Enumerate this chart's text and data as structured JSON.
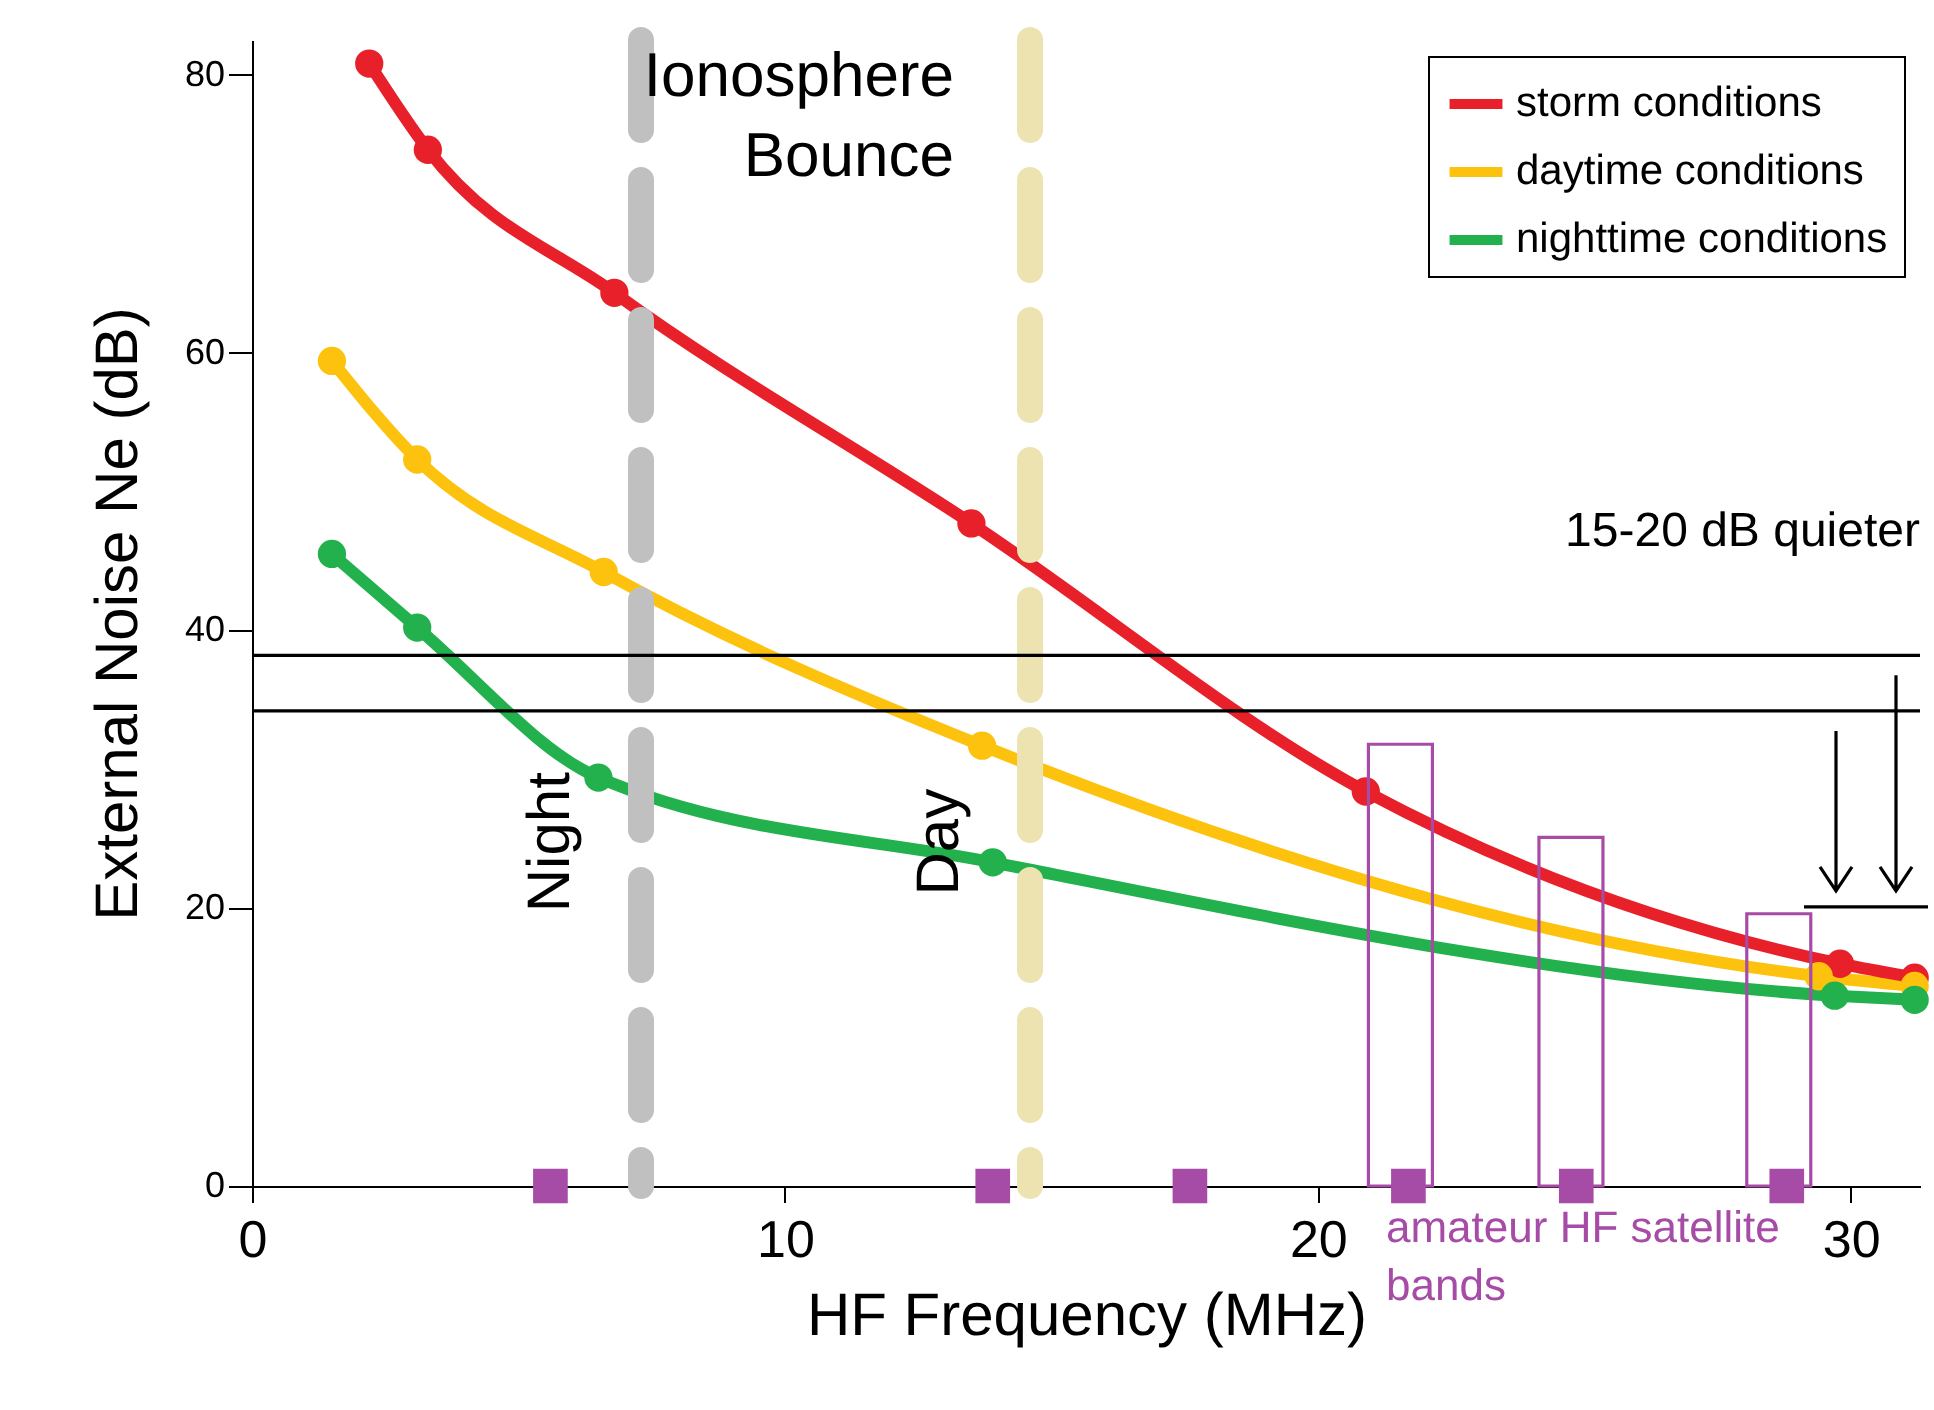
{
  "chart_data": {
    "type": "line",
    "xlabel": "HF Frequency (MHz)",
    "ylabel": "External Noise  Ne (dB)",
    "xlim": [
      0,
      31.3
    ],
    "ylim": [
      0,
      82.5
    ],
    "xticks": [
      0,
      10,
      20,
      30
    ],
    "yticks": [
      0,
      20,
      40,
      60,
      80
    ],
    "marker": "circle",
    "legend": "top right",
    "grid": false,
    "series": [
      {
        "name": "storm conditions",
        "color": "#e8202a",
        "x": [
          2.2,
          3.3,
          6.8,
          13.5,
          20.9,
          29.8,
          31.2
        ],
        "values": [
          80.8,
          74.6,
          64.3,
          47.7,
          28.4,
          16.0,
          15.0
        ]
      },
      {
        "name": "daytime conditions",
        "color": "#fdc20e",
        "x": [
          1.5,
          3.1,
          6.6,
          13.7,
          29.4,
          31.2
        ],
        "values": [
          59.4,
          52.3,
          44.2,
          31.7,
          15.1,
          14.4
        ]
      },
      {
        "name": "nighttime conditions",
        "color": "#22b14c",
        "x": [
          1.5,
          3.1,
          6.5,
          13.9,
          29.7,
          31.2
        ],
        "values": [
          45.5,
          40.2,
          29.4,
          23.3,
          13.7,
          13.4
        ]
      },
      {
        "type": "bar",
        "color": "#a64ca6",
        "x": [
          21.55,
          24.75,
          28.65
        ],
        "values": [
          31.8,
          25.1,
          19.6
        ]
      },
      {
        "type": "scatter",
        "marker": "square",
        "color": "#a64ca6",
        "x": [
          5.6,
          13.9,
          17.6,
          21.7,
          24.85,
          28.8
        ],
        "values": [
          0,
          0,
          0,
          0,
          0,
          0
        ]
      }
    ],
    "ref_lines": [
      {
        "axis": "x",
        "value": 7.3,
        "label": "Night",
        "color": "#c0c0c0",
        "line_style": "dashed"
      },
      {
        "axis": "x",
        "value": 14.6,
        "label": "Day",
        "color": "#ece3b0",
        "line_style": "dashed"
      },
      {
        "axis": "y",
        "value": 38.2,
        "color": "#000000"
      },
      {
        "axis": "y",
        "value": 34.2,
        "color": "#000000"
      }
    ],
    "annotations": [
      "Ionosphere Bounce",
      "15-20 dB quieter",
      "amateur HF satellite bands"
    ]
  }
}
